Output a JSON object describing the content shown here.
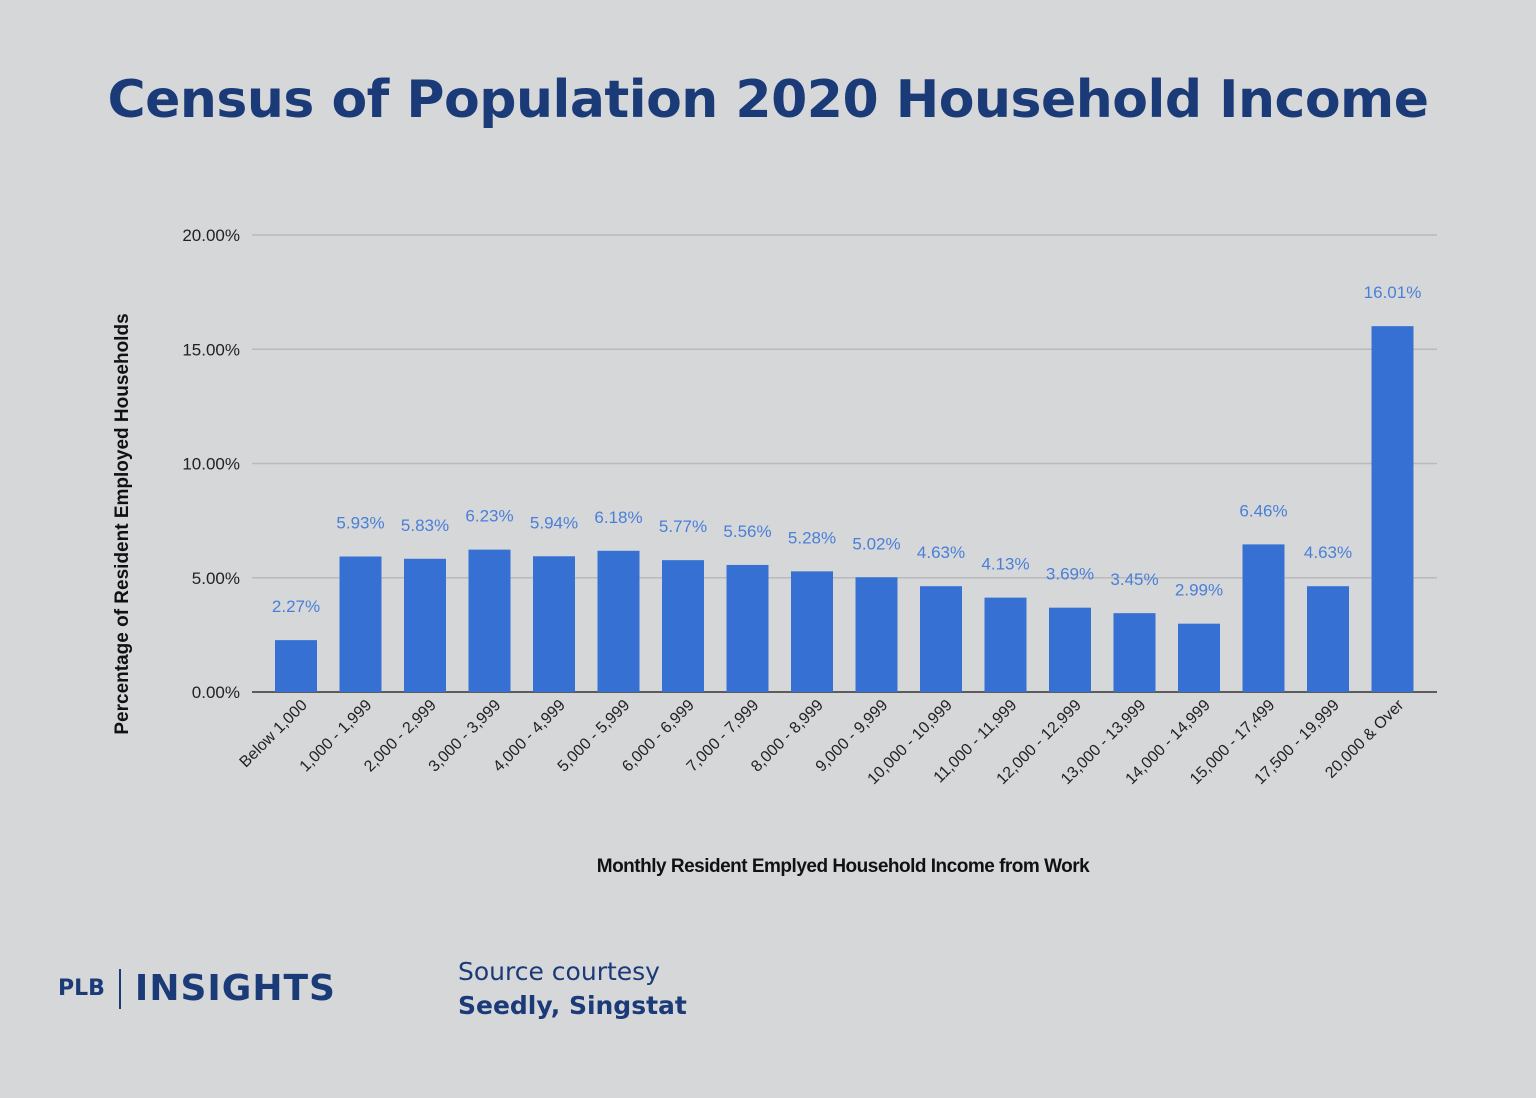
{
  "chart_data": {
    "type": "bar",
    "title": "Census of Population 2020 Household Income",
    "xlabel": "Monthly Resident Emplyed Household Income from Work",
    "ylabel": "Percentage of Resident  Employed Households",
    "ylim": [
      0,
      20
    ],
    "yticks": [
      "0.00%",
      "5.00%",
      "10.00%",
      "15.00%",
      "20.00%"
    ],
    "grid": true,
    "bar_color": "#3670d2",
    "label_color": "#4a7fd8",
    "categories": [
      "Below 1,000",
      "1,000 - 1,999",
      "2,000 - 2,999",
      "3,000 - 3,999",
      "4,000 - 4,999",
      "5,000 - 5,999",
      "6,000 - 6,999",
      "7,000 - 7,999",
      "8,000 - 8,999",
      "9,000 - 9,999",
      "10,000 - 10,999",
      "11,000 - 11,999",
      "12,000 - 12,999",
      "13,000 - 13,999",
      "14,000 - 14,999",
      "15,000 - 17,499",
      "17,500 - 19,999",
      "20,000 & Over"
    ],
    "values": [
      2.27,
      5.93,
      5.83,
      6.23,
      5.94,
      6.18,
      5.77,
      5.56,
      5.28,
      5.02,
      4.63,
      4.13,
      3.69,
      3.45,
      2.99,
      6.46,
      4.63,
      16.01
    ],
    "data_labels": [
      "2.27%",
      "5.93%",
      "5.83%",
      "6.23%",
      "5.94%",
      "6.18%",
      "5.77%",
      "5.56%",
      "5.28%",
      "5.02%",
      "4.63%",
      "4.13%",
      "3.69%",
      "3.45%",
      "2.99%",
      "6.46%",
      "4.63%",
      "16.01%"
    ]
  },
  "footer": {
    "logo_left": "PLB",
    "logo_right": "INSIGHTS",
    "source_line1": "Source courtesy",
    "source_line2": "Seedly, Singstat"
  }
}
